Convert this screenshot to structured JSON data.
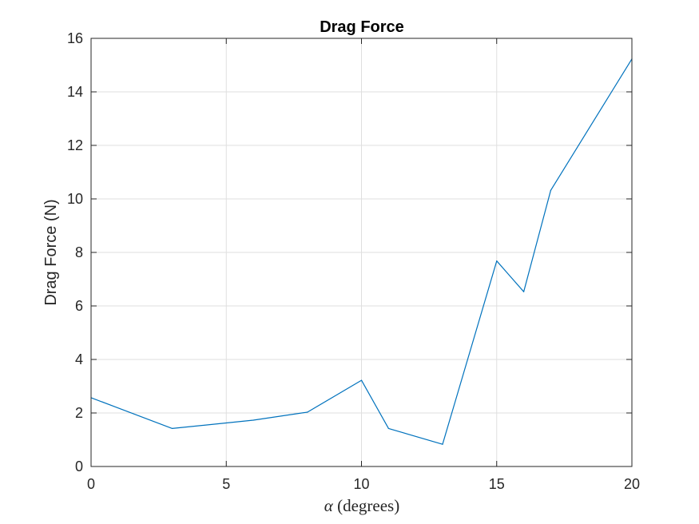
{
  "chart_data": {
    "type": "line",
    "title": "Drag Force",
    "xlabel_symbol": "α",
    "xlabel_text": "(degrees)",
    "ylabel": "Drag Force (N)",
    "xlim": [
      0,
      20
    ],
    "ylim": [
      0,
      16
    ],
    "xticks": [
      0,
      5,
      10,
      15,
      20
    ],
    "yticks": [
      0,
      2,
      4,
      6,
      8,
      10,
      12,
      14,
      16
    ],
    "grid": true,
    "series": [
      {
        "color": "#0072BD",
        "x": [
          0,
          3,
          6,
          8,
          10,
          11,
          13,
          15,
          16,
          17,
          20
        ],
        "y": [
          2.57,
          1.42,
          1.73,
          2.03,
          3.22,
          1.42,
          0.83,
          7.68,
          6.53,
          10.32,
          15.23
        ]
      }
    ]
  }
}
